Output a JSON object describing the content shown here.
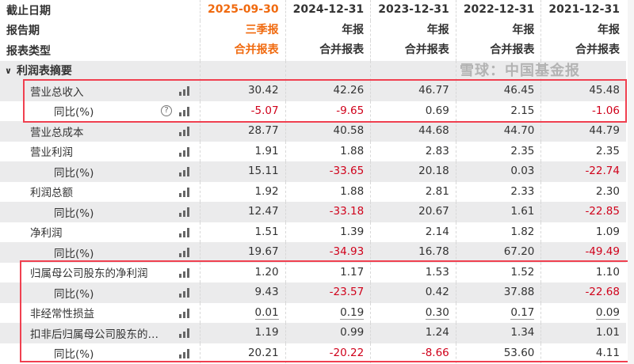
{
  "header": {
    "rows": [
      {
        "label": "截止日期",
        "values": [
          "2025-09-30",
          "2024-12-31",
          "2023-12-31",
          "2022-12-31",
          "2021-12-31"
        ]
      },
      {
        "label": "报告期",
        "values": [
          "三季报",
          "年报",
          "年报",
          "年报",
          "年报"
        ]
      },
      {
        "label": "报表类型",
        "values": [
          "合并报表",
          "合并报表",
          "合并报表",
          "合并报表",
          "合并报表"
        ]
      }
    ],
    "current_color": "#f06a0f"
  },
  "section": {
    "label": "利润表摘要",
    "icon": "chevron-down-icon"
  },
  "rows": [
    {
      "label": "营业总收入",
      "sub": false,
      "values": [
        "30.42",
        "42.26",
        "46.77",
        "46.45",
        "45.48"
      ]
    },
    {
      "label": "同比(%)",
      "sub": true,
      "help": true,
      "values": [
        "-5.07",
        "-9.65",
        "0.69",
        "2.15",
        "-1.06"
      ]
    },
    {
      "label": "营业总成本",
      "sub": false,
      "values": [
        "28.77",
        "40.58",
        "44.68",
        "44.70",
        "44.79"
      ]
    },
    {
      "label": "营业利润",
      "sub": false,
      "values": [
        "1.91",
        "1.88",
        "2.83",
        "2.35",
        "2.35"
      ]
    },
    {
      "label": "同比(%)",
      "sub": true,
      "values": [
        "15.11",
        "-33.65",
        "20.18",
        "0.03",
        "-22.74"
      ]
    },
    {
      "label": "利润总额",
      "sub": false,
      "values": [
        "1.92",
        "1.88",
        "2.81",
        "2.33",
        "2.30"
      ]
    },
    {
      "label": "同比(%)",
      "sub": true,
      "values": [
        "12.47",
        "-33.18",
        "20.67",
        "1.61",
        "-22.85"
      ]
    },
    {
      "label": "净利润",
      "sub": false,
      "values": [
        "1.51",
        "1.39",
        "2.14",
        "1.82",
        "1.09"
      ]
    },
    {
      "label": "同比(%)",
      "sub": true,
      "values": [
        "19.67",
        "-34.93",
        "16.78",
        "67.20",
        "-49.49"
      ]
    },
    {
      "label": "归属母公司股东的净利润",
      "sub": false,
      "values": [
        "1.20",
        "1.17",
        "1.53",
        "1.52",
        "1.10"
      ]
    },
    {
      "label": "同比(%)",
      "sub": true,
      "values": [
        "9.43",
        "-23.57",
        "0.42",
        "37.88",
        "-22.68"
      ]
    },
    {
      "label": "非经常性损益",
      "sub": false,
      "underline": true,
      "values": [
        "0.01",
        "0.19",
        "0.30",
        "0.17",
        "0.09"
      ]
    },
    {
      "label": "扣非后归属母公司股东的…",
      "sub": false,
      "values": [
        "1.19",
        "0.99",
        "1.24",
        "1.34",
        "1.01"
      ]
    },
    {
      "label": "同比(%)",
      "sub": true,
      "values": [
        "20.21",
        "-20.22",
        "-8.66",
        "53.60",
        "4.11"
      ]
    }
  ],
  "watermark": "雪球：中国基金报",
  "colors": {
    "negative": "#d0021b",
    "highlight_box": "#f04050"
  }
}
